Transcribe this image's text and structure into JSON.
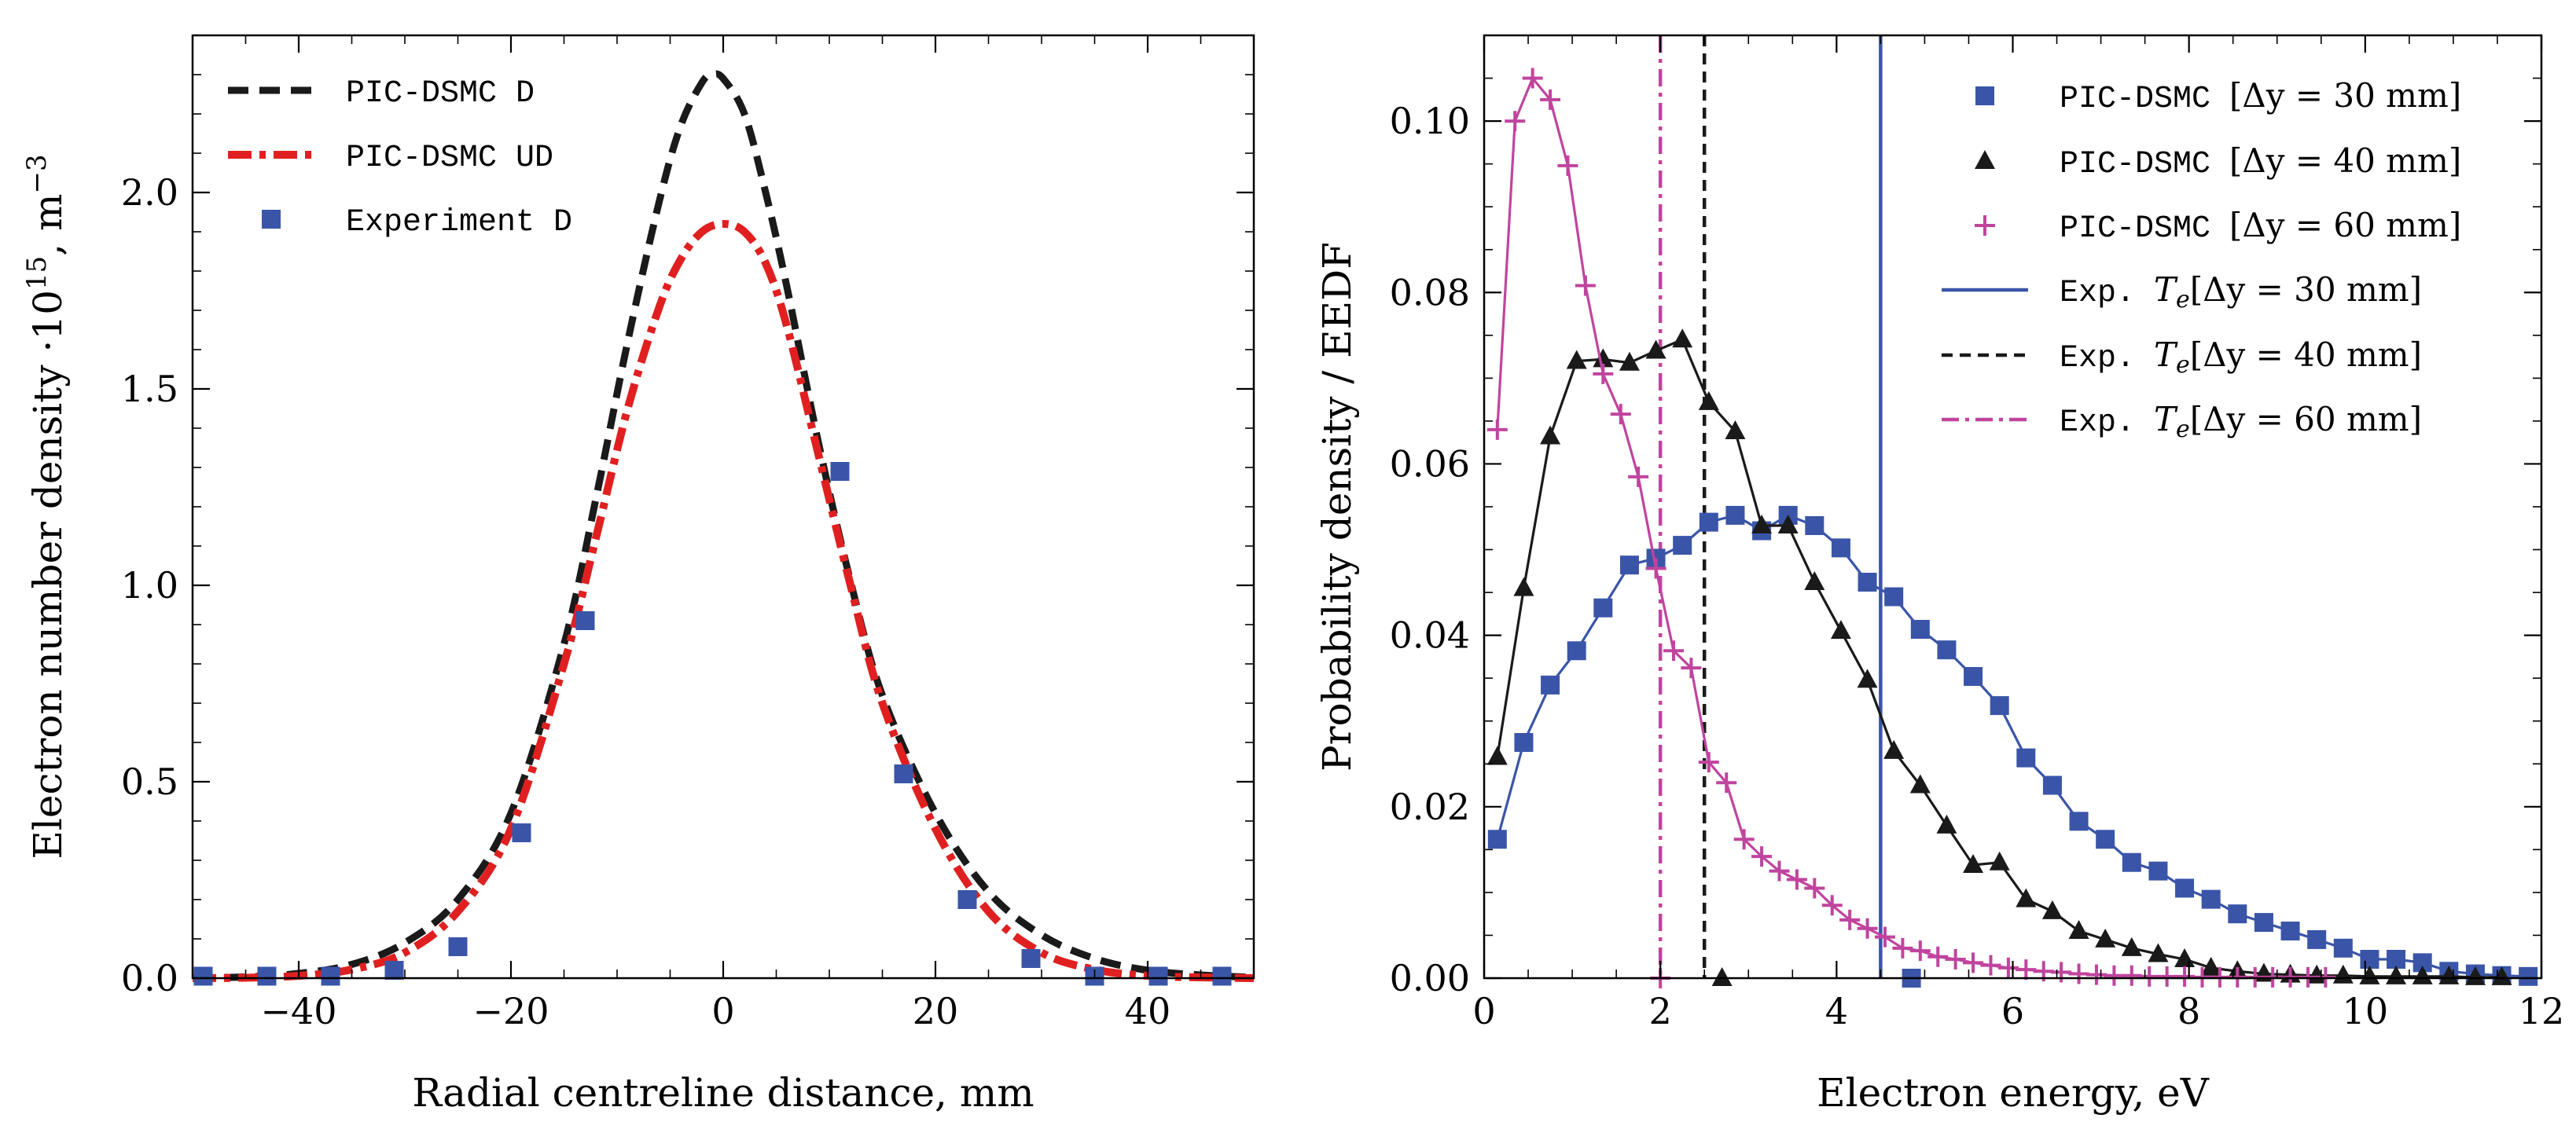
{
  "chart_data": [
    {
      "type": "line",
      "xlabel": "Radial centreline distance, mm",
      "ylabel": "Electron number density ·10^15, m^-3",
      "ylabel_parts": {
        "base": "Electron number density ·10",
        "exp1": "15",
        "mid": ", m",
        "exp2": "−3"
      },
      "xlim": [
        -50,
        50
      ],
      "ylim": [
        0,
        2.4
      ],
      "xticks": [
        -40,
        -20,
        0,
        20,
        40
      ],
      "xtick_labels": [
        "−40",
        "−20",
        "0",
        "20",
        "40"
      ],
      "yticks": [
        0,
        0.5,
        1.0,
        1.5,
        2.0
      ],
      "ytick_labels": [
        "0.0",
        "0.5",
        "1.0",
        "1.5",
        "2.0"
      ],
      "legend_position": "top-left",
      "series": [
        {
          "name": "PIC-DSMC D",
          "style": "dashed",
          "color": "#1a1a1a",
          "x": [
            -50,
            -45,
            -40,
            -35,
            -30,
            -25,
            -20,
            -15,
            -12,
            -9,
            -6,
            -4,
            -2,
            -1,
            0,
            2,
            4,
            6,
            9,
            12,
            15,
            20,
            25,
            30,
            35,
            40,
            45,
            50
          ],
          "y": [
            0.001,
            0.003,
            0.012,
            0.035,
            0.09,
            0.2,
            0.42,
            0.85,
            1.22,
            1.62,
            1.98,
            2.17,
            2.28,
            2.3,
            2.29,
            2.2,
            2.0,
            1.76,
            1.36,
            1.01,
            0.72,
            0.42,
            0.22,
            0.11,
            0.05,
            0.02,
            0.008,
            0.002
          ]
        },
        {
          "name": "PIC-DSMC UD",
          "style": "dashdot",
          "color": "#e02020",
          "x": [
            -50,
            -45,
            -40,
            -35,
            -30,
            -25,
            -20,
            -15,
            -12,
            -9,
            -6,
            -4,
            -2,
            0,
            2,
            4,
            6,
            9,
            12,
            15,
            20,
            25,
            30,
            35,
            40,
            45,
            50
          ],
          "y": [
            0.0,
            0.001,
            0.006,
            0.022,
            0.065,
            0.17,
            0.38,
            0.8,
            1.12,
            1.45,
            1.71,
            1.83,
            1.9,
            1.92,
            1.9,
            1.82,
            1.66,
            1.33,
            1.0,
            0.7,
            0.38,
            0.17,
            0.065,
            0.022,
            0.006,
            0.002,
            0.0
          ]
        },
        {
          "name": "Experiment D",
          "style": "square-markers",
          "color": "#3a55a8",
          "x": [
            -49,
            -43,
            -37,
            -31,
            -25,
            -19,
            -13,
            11,
            17,
            23,
            29,
            35,
            41,
            47
          ],
          "y": [
            0.005,
            0.005,
            0.005,
            0.02,
            0.08,
            0.37,
            0.91,
            1.29,
            0.52,
            0.2,
            0.05,
            0.005,
            0.005,
            0.005
          ]
        }
      ]
    },
    {
      "type": "line",
      "xlabel": "Electron energy, eV",
      "ylabel": "Probability density / EEDF",
      "xlim": [
        0,
        12
      ],
      "ylim": [
        0,
        0.11
      ],
      "xticks": [
        0,
        2,
        4,
        6,
        8,
        10,
        12
      ],
      "xtick_labels": [
        "0",
        "2",
        "4",
        "6",
        "8",
        "10",
        "12"
      ],
      "yticks": [
        0,
        0.02,
        0.04,
        0.06,
        0.08,
        0.1
      ],
      "ytick_labels": [
        "0.00",
        "0.02",
        "0.04",
        "0.06",
        "0.08",
        "0.10"
      ],
      "legend_position": "top-right",
      "series": [
        {
          "name": "PIC-DSMC [Δy = 30 mm]",
          "legend_mono": "PIC-DSMC ",
          "legend_math": "[Δy = 30 mm]",
          "style": "square-markers-line",
          "color": "#3a55a8",
          "x": [
            0.15,
            0.45,
            0.75,
            1.05,
            1.35,
            1.65,
            1.95,
            2.25,
            2.55,
            2.85,
            3.15,
            3.45,
            3.75,
            4.05,
            4.35,
            4.65,
            4.95,
            5.25,
            5.55,
            5.85,
            6.15,
            6.45,
            6.75,
            7.05,
            7.35,
            7.65,
            7.95,
            8.25,
            8.55,
            8.85,
            9.15,
            9.45,
            9.75,
            10.05,
            10.35,
            10.65,
            10.95,
            11.25,
            11.55,
            11.85
          ],
          "y": [
            0.0162,
            0.0275,
            0.0342,
            0.0382,
            0.0432,
            0.0482,
            0.049,
            0.0505,
            0.0532,
            0.054,
            0.0522,
            0.054,
            0.0528,
            0.0502,
            0.0462,
            0.0445,
            0.0407,
            0.0383,
            0.0352,
            0.0318,
            0.0257,
            0.0225,
            0.0183,
            0.0162,
            0.0135,
            0.0125,
            0.0105,
            0.0092,
            0.0075,
            0.0065,
            0.0055,
            0.0045,
            0.0035,
            0.0022,
            0.0022,
            0.0018,
            0.0008,
            0.0005,
            0.0003,
            0.0002
          ]
        },
        {
          "name": "PIC-DSMC [Δy = 40 mm]",
          "legend_mono": "PIC-DSMC ",
          "legend_math": "[Δy = 40 mm]",
          "style": "triangle-markers-line",
          "color": "#1a1a1a",
          "x": [
            0.15,
            0.45,
            0.75,
            1.05,
            1.35,
            1.65,
            1.95,
            2.25,
            2.55,
            2.85,
            3.15,
            3.45,
            3.75,
            4.05,
            4.35,
            4.65,
            4.95,
            5.25,
            5.55,
            5.85,
            6.15,
            6.45,
            6.75,
            7.05,
            7.35,
            7.65,
            7.95,
            8.25,
            8.55,
            8.85,
            9.15,
            9.45,
            9.75,
            10.05,
            10.35,
            10.65,
            10.95,
            11.25,
            11.55
          ],
          "y": [
            0.0258,
            0.0455,
            0.0632,
            0.072,
            0.0722,
            0.0718,
            0.0732,
            0.0745,
            0.0672,
            0.0638,
            0.0528,
            0.0528,
            0.0462,
            0.0405,
            0.0348,
            0.0265,
            0.0225,
            0.0178,
            0.0132,
            0.0135,
            0.0092,
            0.0078,
            0.0055,
            0.0045,
            0.0035,
            0.0028,
            0.0022,
            0.0012,
            0.0008,
            0.0005,
            0.0004,
            0.0003,
            0.0003,
            0.0002,
            0.0002,
            0.0002,
            0.0002,
            0.0001,
            0.0001
          ]
        },
        {
          "name": "PIC-DSMC [Δy = 60 mm]",
          "legend_mono": "PIC-DSMC ",
          "legend_math": "[Δy = 60 mm]",
          "style": "plus-markers-line",
          "color": "#c0449e",
          "x": [
            0.15,
            0.35,
            0.55,
            0.75,
            0.95,
            1.15,
            1.35,
            1.55,
            1.75,
            1.95,
            2.15,
            2.35,
            2.55,
            2.75,
            2.95,
            3.15,
            3.35,
            3.55,
            3.75,
            3.95,
            4.15,
            4.35,
            4.55,
            4.75,
            4.95,
            5.15,
            5.35,
            5.55,
            5.75,
            5.95,
            6.15,
            6.35,
            6.55,
            6.75,
            6.95,
            7.15,
            7.35,
            7.55,
            7.75,
            7.95,
            8.15,
            8.35,
            8.55,
            8.75,
            8.95,
            9.15,
            9.35,
            9.55
          ],
          "y": [
            0.064,
            0.1,
            0.105,
            0.1025,
            0.0948,
            0.0808,
            0.0705,
            0.0658,
            0.0585,
            0.0478,
            0.0382,
            0.0362,
            0.0252,
            0.0228,
            0.0162,
            0.0142,
            0.0125,
            0.0115,
            0.0105,
            0.0085,
            0.0068,
            0.0058,
            0.0048,
            0.0035,
            0.0032,
            0.0025,
            0.0022,
            0.0018,
            0.0015,
            0.0012,
            0.001,
            0.0008,
            0.0007,
            0.0005,
            0.0004,
            0.0003,
            0.0003,
            0.0002,
            0.0002,
            0.0002,
            0.0001,
            0.0001,
            0.0001,
            0.0001,
            0.0001,
            0.0001,
            0.0001,
            0.0001
          ]
        },
        {
          "name": "Exp. Te[Δy = 30 mm]",
          "legend_mono": "Exp. ",
          "legend_math": "[Δy = 30 mm]",
          "style": "vline-solid",
          "color": "#3a55a8",
          "x_value": 4.5
        },
        {
          "name": "Exp. Te[Δy = 40 mm]",
          "legend_mono": "Exp. ",
          "legend_math": "[Δy = 40 mm]",
          "style": "vline-dashed",
          "color": "#1a1a1a",
          "x_value": 2.5
        },
        {
          "name": "Exp. Te[Δy = 60 mm]",
          "legend_mono": "Exp. ",
          "legend_math": "[Δy = 60 mm]",
          "style": "vline-dashdot",
          "color": "#c0449e",
          "x_value": 2.0
        }
      ],
      "outliers": [
        {
          "series": 0,
          "x": 4.85,
          "y": 0.0
        },
        {
          "series": 1,
          "x": 2.7,
          "y": 0.0
        },
        {
          "series": 2,
          "x": 2.0,
          "y": 0.0
        }
      ]
    }
  ]
}
